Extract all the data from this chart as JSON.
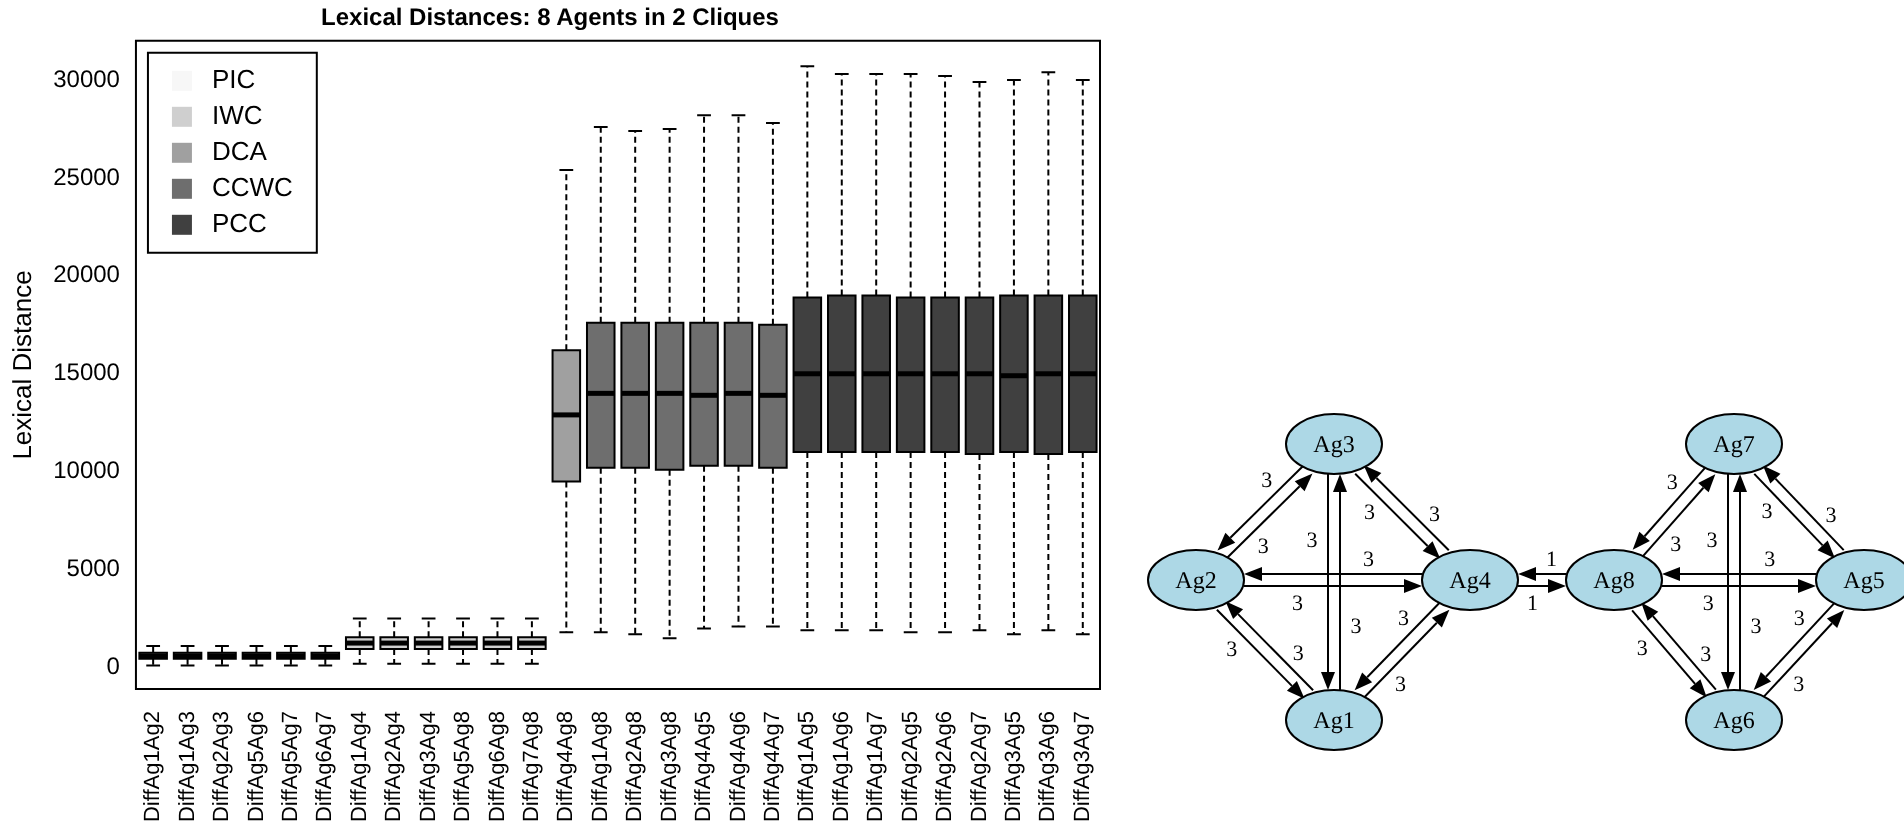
{
  "chart_data": [
    {
      "type": "box",
      "title": "Lexical Distances: 8 Agents in 2 Cliques",
      "ylabel": "Lexical Distance",
      "categories": [
        "DiffAg1Ag2",
        "DiffAg1Ag3",
        "DiffAg2Ag3",
        "DiffAg5Ag6",
        "DiffAg5Ag7",
        "DiffAg6Ag7",
        "DiffAg1Ag4",
        "DiffAg2Ag4",
        "DiffAg3Ag4",
        "DiffAg5Ag8",
        "DiffAg6Ag8",
        "DiffAg7Ag8",
        "DiffAg4Ag8",
        "DiffAg1Ag8",
        "DiffAg2Ag8",
        "DiffAg3Ag8",
        "DiffAg4Ag5",
        "DiffAg4Ag6",
        "DiffAg4Ag7",
        "DiffAg1Ag5",
        "DiffAg1Ag6",
        "DiffAg1Ag7",
        "DiffAg2Ag5",
        "DiffAg2Ag6",
        "DiffAg2Ag7",
        "DiffAg3Ag5",
        "DiffAg3Ag6",
        "DiffAg3Ag7"
      ],
      "series": [
        {
          "name": "PIC",
          "color": "#f7f7f7",
          "boxes": [
            {
              "low": 100,
              "q1": 450,
              "median": 600,
              "q3": 750,
              "high": 1100
            },
            {
              "low": 100,
              "q1": 450,
              "median": 600,
              "q3": 750,
              "high": 1100
            },
            {
              "low": 100,
              "q1": 450,
              "median": 600,
              "q3": 750,
              "high": 1100
            },
            {
              "low": 100,
              "q1": 450,
              "median": 600,
              "q3": 750,
              "high": 1100
            },
            {
              "low": 100,
              "q1": 450,
              "median": 600,
              "q3": 750,
              "high": 1100
            },
            {
              "low": 100,
              "q1": 450,
              "median": 600,
              "q3": 750,
              "high": 1100
            },
            null,
            null,
            null,
            null,
            null,
            null,
            null,
            null,
            null,
            null,
            null,
            null,
            null,
            null,
            null,
            null,
            null,
            null,
            null,
            null,
            null,
            null
          ]
        },
        {
          "name": "IWC",
          "color": "#cfcfcf",
          "boxes": [
            null,
            null,
            null,
            null,
            null,
            null,
            {
              "low": 200,
              "q1": 950,
              "median": 1250,
              "q3": 1550,
              "high": 2500
            },
            {
              "low": 200,
              "q1": 950,
              "median": 1250,
              "q3": 1550,
              "high": 2500
            },
            {
              "low": 200,
              "q1": 950,
              "median": 1250,
              "q3": 1550,
              "high": 2500
            },
            {
              "low": 200,
              "q1": 950,
              "median": 1250,
              "q3": 1550,
              "high": 2500
            },
            {
              "low": 200,
              "q1": 950,
              "median": 1250,
              "q3": 1550,
              "high": 2500
            },
            {
              "low": 200,
              "q1": 950,
              "median": 1250,
              "q3": 1550,
              "high": 2500
            },
            null,
            null,
            null,
            null,
            null,
            null,
            null,
            null,
            null,
            null,
            null,
            null,
            null,
            null,
            null,
            null
          ]
        },
        {
          "name": "DCA",
          "color": "#a0a0a0",
          "boxes": [
            null,
            null,
            null,
            null,
            null,
            null,
            null,
            null,
            null,
            null,
            null,
            null,
            {
              "low": 1800,
              "q1": 9500,
              "median": 12900,
              "q3": 16200,
              "high": 25400
            },
            null,
            null,
            null,
            null,
            null,
            null,
            null,
            null,
            null,
            null,
            null,
            null,
            null,
            null,
            null
          ]
        },
        {
          "name": "CCWC",
          "color": "#6e6e6e",
          "boxes": [
            null,
            null,
            null,
            null,
            null,
            null,
            null,
            null,
            null,
            null,
            null,
            null,
            null,
            {
              "low": 1800,
              "q1": 10200,
              "median": 14000,
              "q3": 17600,
              "high": 27600
            },
            {
              "low": 1700,
              "q1": 10200,
              "median": 14000,
              "q3": 17600,
              "high": 27400
            },
            {
              "low": 1500,
              "q1": 10100,
              "median": 14000,
              "q3": 17600,
              "high": 27500
            },
            {
              "low": 2000,
              "q1": 10300,
              "median": 13900,
              "q3": 17600,
              "high": 28200
            },
            {
              "low": 2100,
              "q1": 10300,
              "median": 14000,
              "q3": 17600,
              "high": 28200
            },
            {
              "low": 2100,
              "q1": 10200,
              "median": 13900,
              "q3": 17500,
              "high": 27800
            },
            null,
            null,
            null,
            null,
            null,
            null,
            null,
            null,
            null
          ]
        },
        {
          "name": "PCC",
          "color": "#404040",
          "boxes": [
            null,
            null,
            null,
            null,
            null,
            null,
            null,
            null,
            null,
            null,
            null,
            null,
            null,
            null,
            null,
            null,
            null,
            null,
            null,
            {
              "low": 1900,
              "q1": 11000,
              "median": 15000,
              "q3": 18900,
              "high": 30700
            },
            {
              "low": 1900,
              "q1": 11000,
              "median": 15000,
              "q3": 19000,
              "high": 30300
            },
            {
              "low": 1900,
              "q1": 11000,
              "median": 15000,
              "q3": 19000,
              "high": 30300
            },
            {
              "low": 1800,
              "q1": 11000,
              "median": 15000,
              "q3": 18900,
              "high": 30300
            },
            {
              "low": 1800,
              "q1": 11000,
              "median": 15000,
              "q3": 18900,
              "high": 30200
            },
            {
              "low": 1900,
              "q1": 10900,
              "median": 15000,
              "q3": 18900,
              "high": 29900
            },
            {
              "low": 1700,
              "q1": 11000,
              "median": 14900,
              "q3": 19000,
              "high": 30000
            },
            {
              "low": 1900,
              "q1": 10900,
              "median": 15000,
              "q3": 19000,
              "high": 30400
            },
            {
              "low": 1700,
              "q1": 11000,
              "median": 15000,
              "q3": 19000,
              "high": 30000
            }
          ]
        }
      ],
      "ylim": [
        -1100,
        32000
      ],
      "yticks": [
        0,
        5000,
        10000,
        15000,
        20000,
        25000,
        30000
      ],
      "legend": "top left"
    },
    {
      "type": "other",
      "annotations": [
        "Ag1",
        "Ag2",
        "Ag3",
        "Ag4",
        "Ag5",
        "Ag6",
        "Ag7",
        "Ag8",
        "3",
        "3",
        "3",
        "3",
        "3",
        "3",
        "3",
        "3",
        "3",
        "3",
        "3",
        "3",
        "3",
        "3",
        "3",
        "3",
        "3",
        "3",
        "3",
        "3",
        "3",
        "3",
        "3",
        "3",
        "1",
        "1"
      ]
    }
  ]
}
